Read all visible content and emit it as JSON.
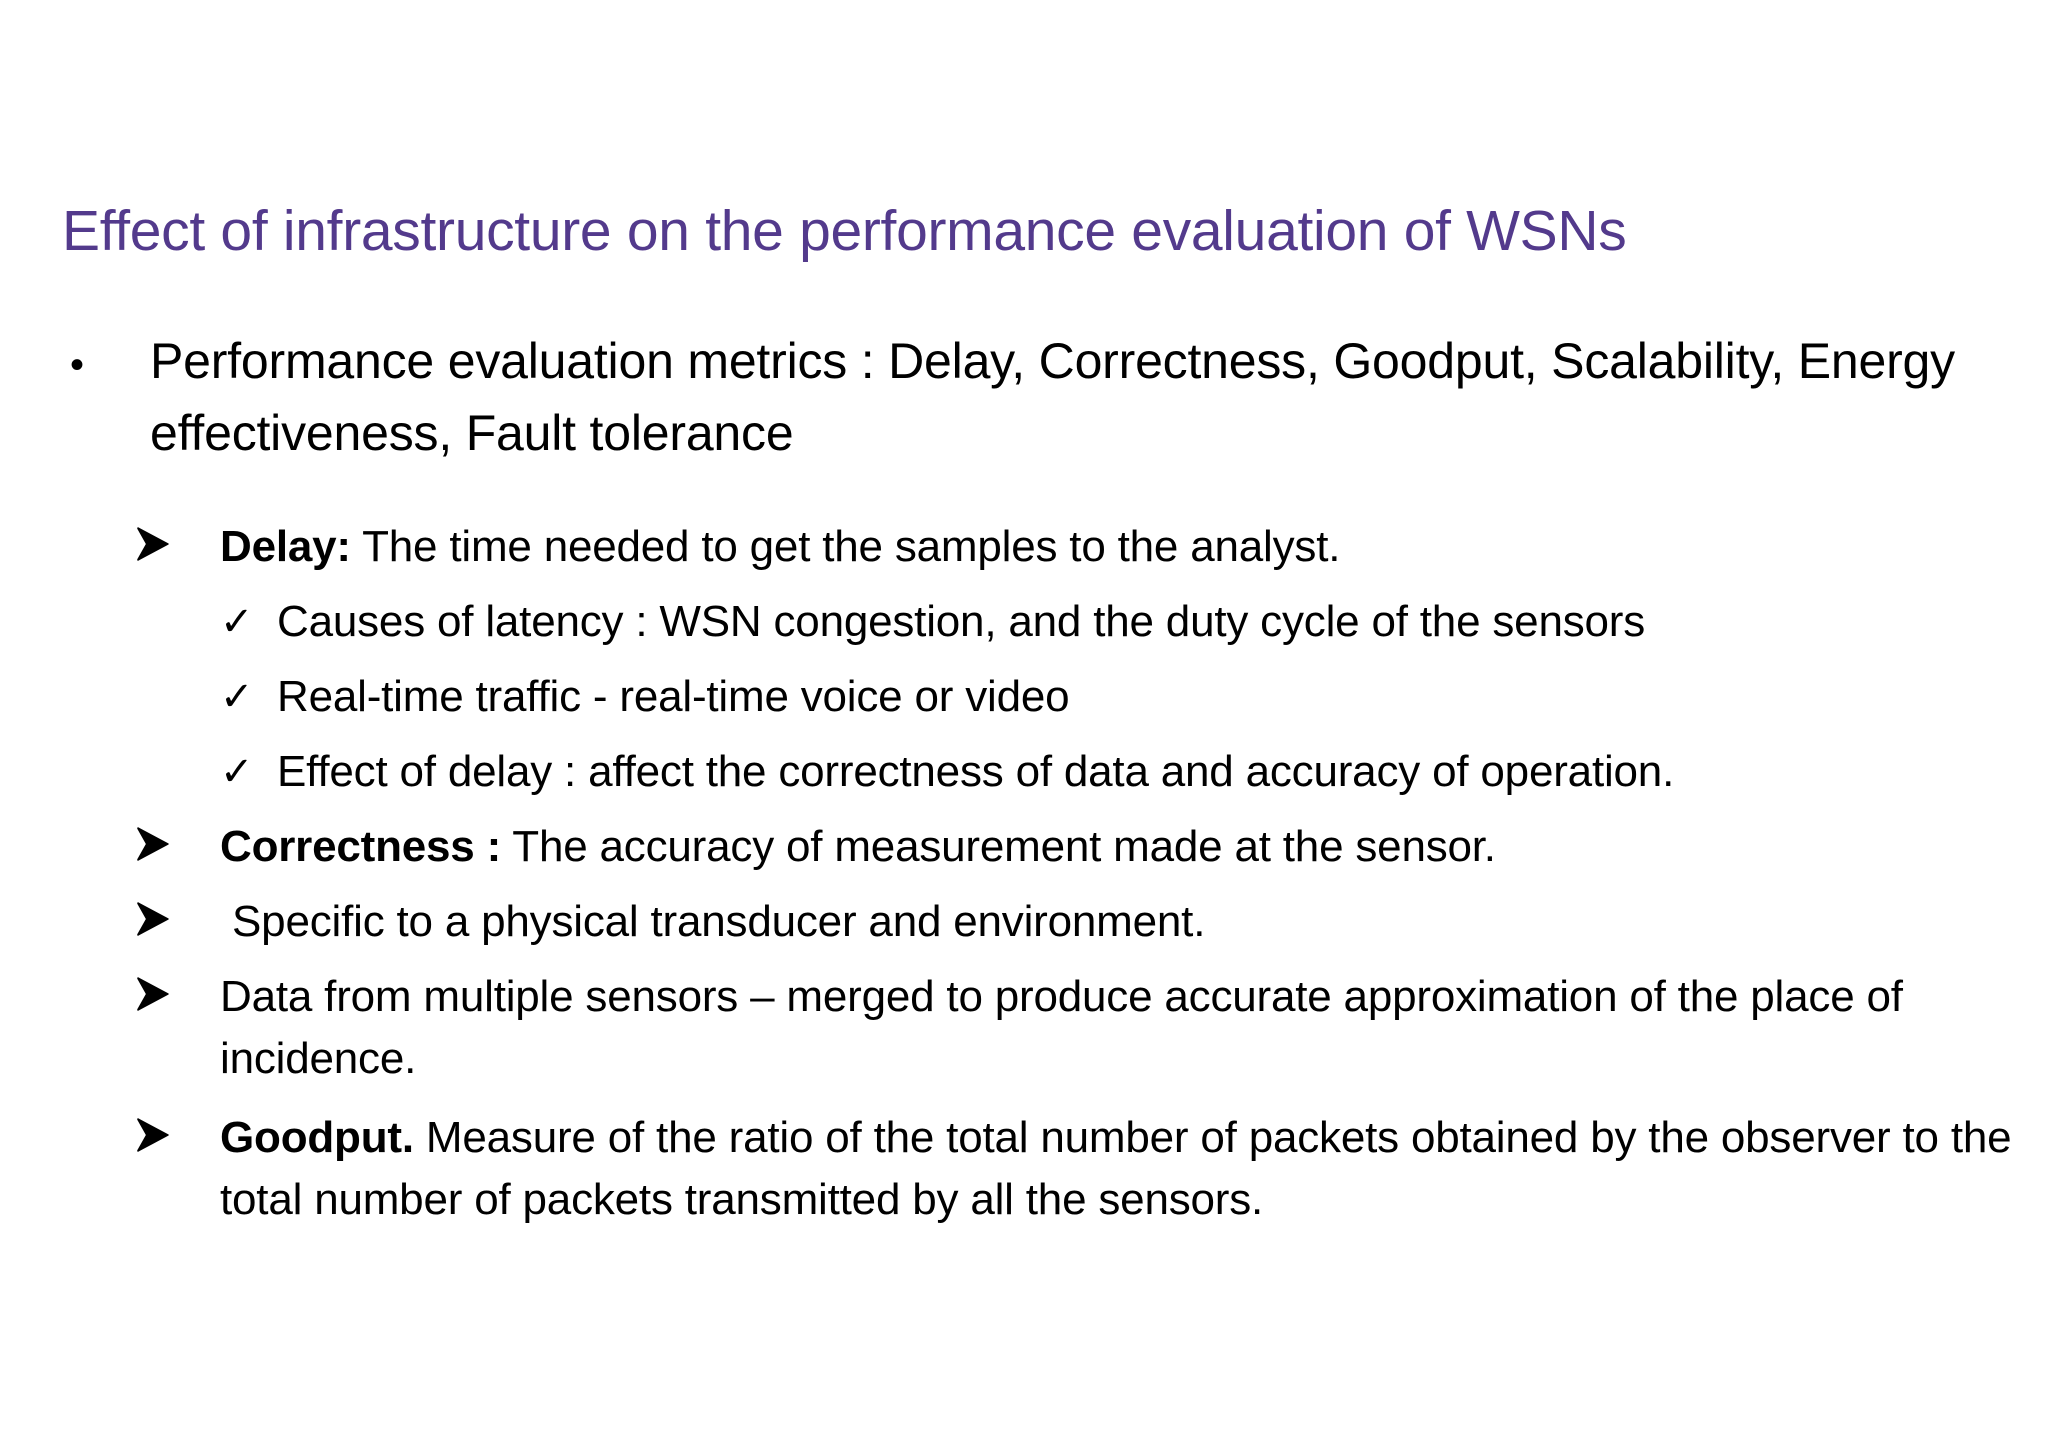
{
  "title": "Effect of infrastructure on the performance evaluation of WSNs",
  "main_bullet": {
    "symbol": "•",
    "text": "Performance evaluation metrics : Delay, Correctness, Goodput, Scalability, Energy effectiveness,  Fault tolerance"
  },
  "items": [
    {
      "label": "Delay:",
      "text": " The time needed to get the samples to the analyst."
    },
    {
      "label": "",
      "text": "Causes of latency : WSN congestion, and the duty cycle of the sensors"
    },
    {
      "label": "",
      "text": "Real-time traffic - real-time voice or video"
    },
    {
      "label": "",
      "text": "Effect of delay : affect the correctness of data and accuracy of operation."
    },
    {
      "label": "Correctness :",
      "text": " The accuracy of measurement made at the sensor."
    },
    {
      "label": "",
      "text": " Specific to a physical transducer and environment."
    },
    {
      "label": "",
      "text": "Data from multiple sensors – merged to produce accurate approximation of the place of incidence."
    },
    {
      "label": "Goodput.",
      "text": " Measure of the ratio of the total number of packets obtained by the observer to the total number of packets transmitted by all the sensors."
    }
  ],
  "check_symbol": "✓",
  "colors": {
    "title": "#533a8c",
    "text": "#000000"
  },
  "icons": {
    "arrow_bullet": "arrowhead-bullet-icon",
    "check_bullet": "checkmark-icon"
  }
}
